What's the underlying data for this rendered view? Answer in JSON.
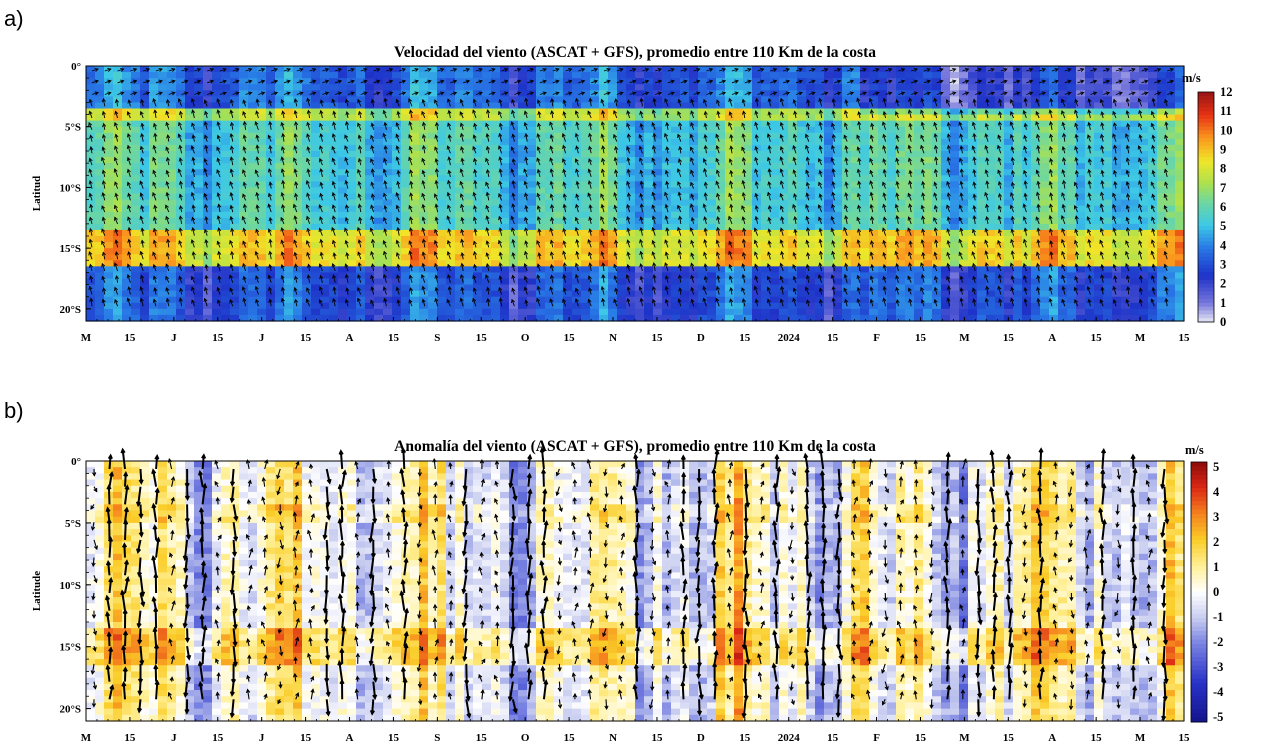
{
  "panels": [
    {
      "letter": "a)",
      "title": "Velocidad del viento (ASCAT + GFS), promedio entre 110 Km de la costa",
      "ylabel": "Latitud",
      "unit": "m/s"
    },
    {
      "letter": "b)",
      "title": "Anomalía del viento (ASCAT + GFS), promedio entre 110 Km de la costa",
      "ylabel": "Latitude",
      "unit": "m/s"
    }
  ],
  "chart_data": [
    {
      "type": "heatmap",
      "title": "Velocidad del viento (ASCAT + GFS), promedio entre 110 Km de la costa",
      "xlabel": "",
      "ylabel": "Latitud",
      "x_tick_labels": [
        "M",
        "15",
        "J",
        "15",
        "J",
        "15",
        "A",
        "15",
        "S",
        "15",
        "O",
        "15",
        "N",
        "15",
        "D",
        "15",
        "2024",
        "15",
        "F",
        "15",
        "M",
        "15",
        "A",
        "15",
        "M",
        "15"
      ],
      "y_tick_labels": [
        "0°",
        "5°S",
        "10°S",
        "15°S",
        "20°S"
      ],
      "y_tick_values": [
        0,
        -5,
        -10,
        -15,
        -20
      ],
      "ylim": [
        -21,
        0
      ],
      "colorbar": {
        "label": "m/s",
        "ticks": [
          "12",
          "11",
          "10",
          "9",
          "8",
          "7",
          "6",
          "5",
          "4",
          "3",
          "2",
          "1",
          "0"
        ],
        "range": [
          0,
          12
        ]
      },
      "latitude_bands": [
        {
          "lat_range": [
            0,
            -3.5
          ],
          "speed": 3.5
        },
        {
          "lat_range": [
            -3.5,
            -4.5
          ],
          "speed": 7.5
        },
        {
          "lat_range": [
            -4.5,
            -13.5
          ],
          "speed": 5.5
        },
        {
          "lat_range": [
            -13.5,
            -16.5
          ],
          "speed": 8.5
        },
        {
          "lat_range": [
            -16.5,
            -21
          ],
          "speed": 3
        }
      ],
      "vectors": "wind vectors overlaid"
    },
    {
      "type": "heatmap",
      "title": "Anomalía del viento (ASCAT + GFS), promedio entre 110 Km de la costa",
      "xlabel": "",
      "ylabel": "Latitude",
      "x_tick_labels": [
        "M",
        "15",
        "J",
        "15",
        "J",
        "15",
        "A",
        "15",
        "S",
        "15",
        "O",
        "15",
        "N",
        "15",
        "D",
        "15",
        "2024",
        "15",
        "F",
        "15",
        "M",
        "15",
        "A",
        "15",
        "M",
        "15"
      ],
      "y_tick_labels": [
        "0°",
        "5°S",
        "10°S",
        "15°S",
        "20°S"
      ],
      "y_tick_values": [
        0,
        -5,
        -10,
        -15,
        -20
      ],
      "ylim": [
        -21,
        0
      ],
      "colorbar": {
        "label": "m/s",
        "ticks": [
          "5",
          "4",
          "3",
          "2",
          "1",
          "0",
          "-1",
          "-2",
          "-3",
          "-4",
          "-5"
        ],
        "range": [
          -5,
          5
        ]
      },
      "vectors": "anomaly wind vectors overlaid"
    }
  ]
}
